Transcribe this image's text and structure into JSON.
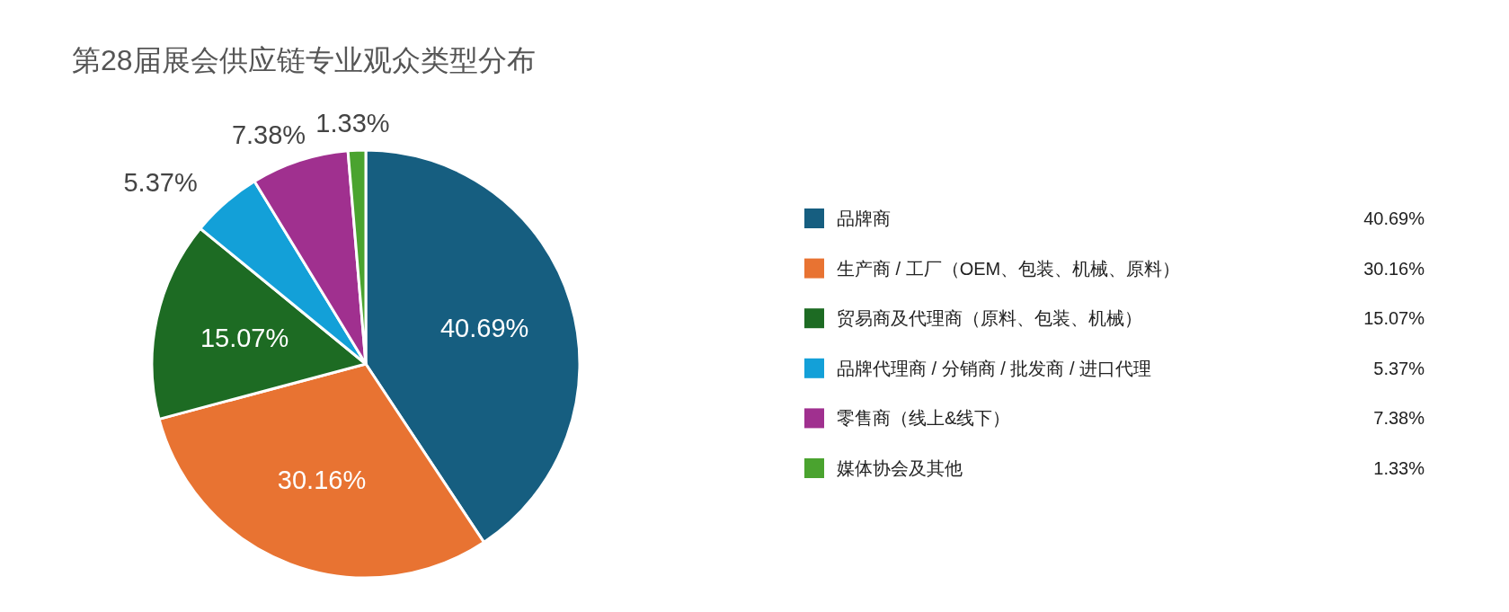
{
  "chart_data": {
    "type": "pie",
    "title": "第28届展会供应链专业观众类型分布",
    "categories": [
      "品牌商",
      "生产商 / 工厂（OEM、包装、机械、原料）",
      "贸易商及代理商（原料、包装、机械）",
      "品牌代理商 / 分销商 / 批发商 / 进口代理",
      "零售商（线上&线下）",
      "媒体协会及其他"
    ],
    "values": [
      40.69,
      30.16,
      15.07,
      5.37,
      7.38,
      1.33
    ],
    "colors": [
      "#165e80",
      "#e87332",
      "#1d6b23",
      "#13a0d8",
      "#a0308f",
      "#4aa32f"
    ],
    "value_labels": [
      "40.69%",
      "30.16%",
      "15.07%",
      "5.37%",
      "7.38%",
      "1.33%"
    ],
    "legend": "right"
  }
}
